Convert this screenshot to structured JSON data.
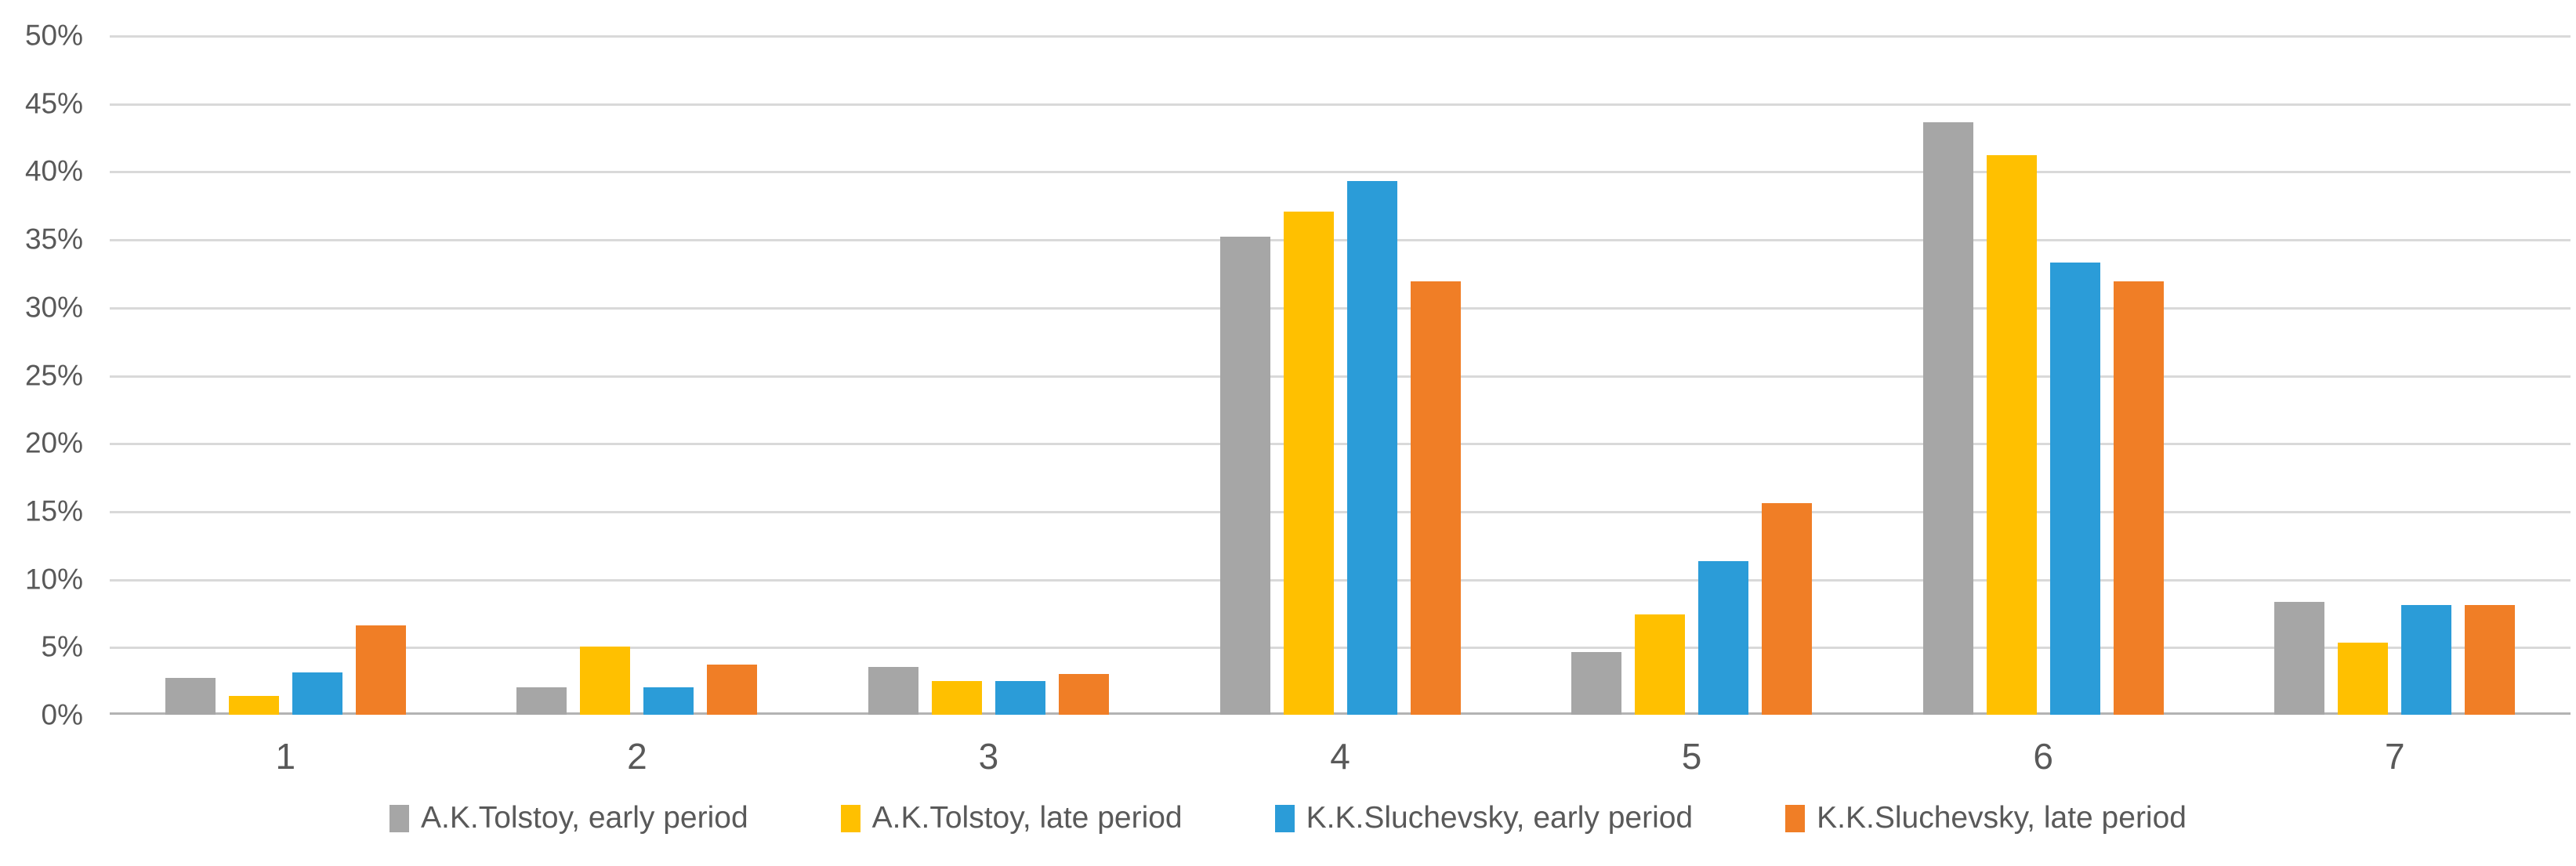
{
  "chart_data": {
    "type": "bar",
    "title": "",
    "xlabel": "",
    "ylabel": "",
    "ylim": [
      0,
      50
    ],
    "y_tick_step": 5,
    "y_tick_labels": [
      "50%",
      "45%",
      "40%",
      "35%",
      "30%",
      "25%",
      "20%",
      "15%",
      "10%",
      "5%",
      "0%"
    ],
    "grid": "horizontal",
    "legend_position": "bottom",
    "gridline_color": "#d9d9d9",
    "axis_text_color": "#595959",
    "categories": [
      "1",
      "2",
      "3",
      "4",
      "5",
      "6",
      "7"
    ],
    "series": [
      {
        "name": "A.K.Tolstoy, early period",
        "color": "#a6a6a6",
        "values": [
          2.7,
          2.0,
          3.5,
          35.2,
          4.6,
          43.6,
          8.3
        ]
      },
      {
        "name": "A.K.Tolstoy, late period",
        "color": "#ffc000",
        "values": [
          1.4,
          5.0,
          2.5,
          37.0,
          7.4,
          41.2,
          5.3
        ]
      },
      {
        "name": "K.K.Sluchevsky, early period",
        "color": "#2b9cd8",
        "values": [
          3.1,
          2.0,
          2.5,
          39.3,
          11.3,
          33.3,
          8.1
        ]
      },
      {
        "name": "K.K.Sluchevsky, late period",
        "color": "#f07e26",
        "values": [
          6.6,
          3.7,
          3.0,
          31.9,
          15.6,
          31.9,
          8.1
        ]
      }
    ]
  }
}
